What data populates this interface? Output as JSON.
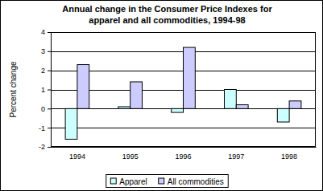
{
  "chart_data": {
    "type": "bar",
    "title": [
      "Annual change in the Consumer Price Indexes for",
      "apparel and all commodities, 1994-98"
    ],
    "y_label": "Percent change",
    "categories": [
      "1994",
      "1995",
      "1996",
      "1997",
      "1998"
    ],
    "series": [
      {
        "name": "Apparel",
        "color": "#ccffff",
        "values": [
          -1.6,
          0.1,
          -0.2,
          1.0,
          -0.7
        ]
      },
      {
        "name": "All commodities",
        "color": "#ccccff",
        "values": [
          2.3,
          1.4,
          3.2,
          0.2,
          0.4
        ]
      }
    ],
    "ylim": [
      -2,
      4
    ],
    "yticks": [
      -2,
      -1,
      0,
      1,
      2,
      3,
      4
    ],
    "grid": true,
    "legend": "bottom"
  }
}
